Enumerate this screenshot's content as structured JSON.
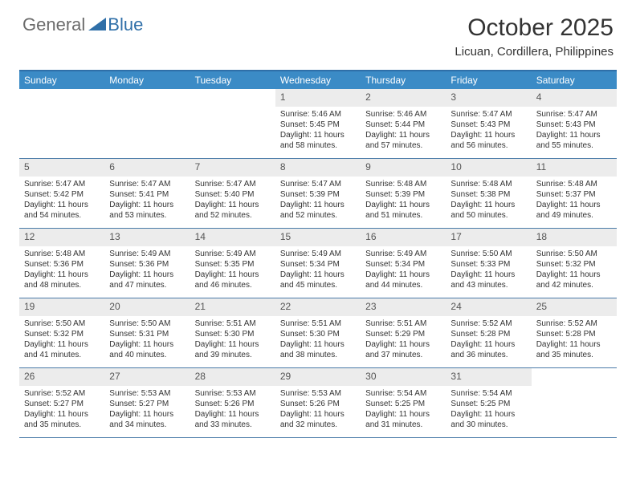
{
  "brand": {
    "general": "General",
    "blue": "Blue"
  },
  "title": "October 2025",
  "location": "Licuan, Cordillera, Philippines",
  "colors": {
    "header_bg": "#3b8bc6",
    "border_top": "#2f6fa8",
    "row_border": "#4a7ba8",
    "daynum_bg": "#ececec",
    "logo_gray": "#6b6b6b",
    "logo_blue": "#2f6fa8"
  },
  "day_headers": [
    "Sunday",
    "Monday",
    "Tuesday",
    "Wednesday",
    "Thursday",
    "Friday",
    "Saturday"
  ],
  "weeks": [
    [
      null,
      null,
      null,
      {
        "n": "1",
        "sr": "5:46 AM",
        "ss": "5:45 PM",
        "dl": "11 hours and 58 minutes."
      },
      {
        "n": "2",
        "sr": "5:46 AM",
        "ss": "5:44 PM",
        "dl": "11 hours and 57 minutes."
      },
      {
        "n": "3",
        "sr": "5:47 AM",
        "ss": "5:43 PM",
        "dl": "11 hours and 56 minutes."
      },
      {
        "n": "4",
        "sr": "5:47 AM",
        "ss": "5:43 PM",
        "dl": "11 hours and 55 minutes."
      }
    ],
    [
      {
        "n": "5",
        "sr": "5:47 AM",
        "ss": "5:42 PM",
        "dl": "11 hours and 54 minutes."
      },
      {
        "n": "6",
        "sr": "5:47 AM",
        "ss": "5:41 PM",
        "dl": "11 hours and 53 minutes."
      },
      {
        "n": "7",
        "sr": "5:47 AM",
        "ss": "5:40 PM",
        "dl": "11 hours and 52 minutes."
      },
      {
        "n": "8",
        "sr": "5:47 AM",
        "ss": "5:39 PM",
        "dl": "11 hours and 52 minutes."
      },
      {
        "n": "9",
        "sr": "5:48 AM",
        "ss": "5:39 PM",
        "dl": "11 hours and 51 minutes."
      },
      {
        "n": "10",
        "sr": "5:48 AM",
        "ss": "5:38 PM",
        "dl": "11 hours and 50 minutes."
      },
      {
        "n": "11",
        "sr": "5:48 AM",
        "ss": "5:37 PM",
        "dl": "11 hours and 49 minutes."
      }
    ],
    [
      {
        "n": "12",
        "sr": "5:48 AM",
        "ss": "5:36 PM",
        "dl": "11 hours and 48 minutes."
      },
      {
        "n": "13",
        "sr": "5:49 AM",
        "ss": "5:36 PM",
        "dl": "11 hours and 47 minutes."
      },
      {
        "n": "14",
        "sr": "5:49 AM",
        "ss": "5:35 PM",
        "dl": "11 hours and 46 minutes."
      },
      {
        "n": "15",
        "sr": "5:49 AM",
        "ss": "5:34 PM",
        "dl": "11 hours and 45 minutes."
      },
      {
        "n": "16",
        "sr": "5:49 AM",
        "ss": "5:34 PM",
        "dl": "11 hours and 44 minutes."
      },
      {
        "n": "17",
        "sr": "5:50 AM",
        "ss": "5:33 PM",
        "dl": "11 hours and 43 minutes."
      },
      {
        "n": "18",
        "sr": "5:50 AM",
        "ss": "5:32 PM",
        "dl": "11 hours and 42 minutes."
      }
    ],
    [
      {
        "n": "19",
        "sr": "5:50 AM",
        "ss": "5:32 PM",
        "dl": "11 hours and 41 minutes."
      },
      {
        "n": "20",
        "sr": "5:50 AM",
        "ss": "5:31 PM",
        "dl": "11 hours and 40 minutes."
      },
      {
        "n": "21",
        "sr": "5:51 AM",
        "ss": "5:30 PM",
        "dl": "11 hours and 39 minutes."
      },
      {
        "n": "22",
        "sr": "5:51 AM",
        "ss": "5:30 PM",
        "dl": "11 hours and 38 minutes."
      },
      {
        "n": "23",
        "sr": "5:51 AM",
        "ss": "5:29 PM",
        "dl": "11 hours and 37 minutes."
      },
      {
        "n": "24",
        "sr": "5:52 AM",
        "ss": "5:28 PM",
        "dl": "11 hours and 36 minutes."
      },
      {
        "n": "25",
        "sr": "5:52 AM",
        "ss": "5:28 PM",
        "dl": "11 hours and 35 minutes."
      }
    ],
    [
      {
        "n": "26",
        "sr": "5:52 AM",
        "ss": "5:27 PM",
        "dl": "11 hours and 35 minutes."
      },
      {
        "n": "27",
        "sr": "5:53 AM",
        "ss": "5:27 PM",
        "dl": "11 hours and 34 minutes."
      },
      {
        "n": "28",
        "sr": "5:53 AM",
        "ss": "5:26 PM",
        "dl": "11 hours and 33 minutes."
      },
      {
        "n": "29",
        "sr": "5:53 AM",
        "ss": "5:26 PM",
        "dl": "11 hours and 32 minutes."
      },
      {
        "n": "30",
        "sr": "5:54 AM",
        "ss": "5:25 PM",
        "dl": "11 hours and 31 minutes."
      },
      {
        "n": "31",
        "sr": "5:54 AM",
        "ss": "5:25 PM",
        "dl": "11 hours and 30 minutes."
      },
      null
    ]
  ],
  "labels": {
    "sunrise": "Sunrise:",
    "sunset": "Sunset:",
    "daylight": "Daylight:"
  }
}
